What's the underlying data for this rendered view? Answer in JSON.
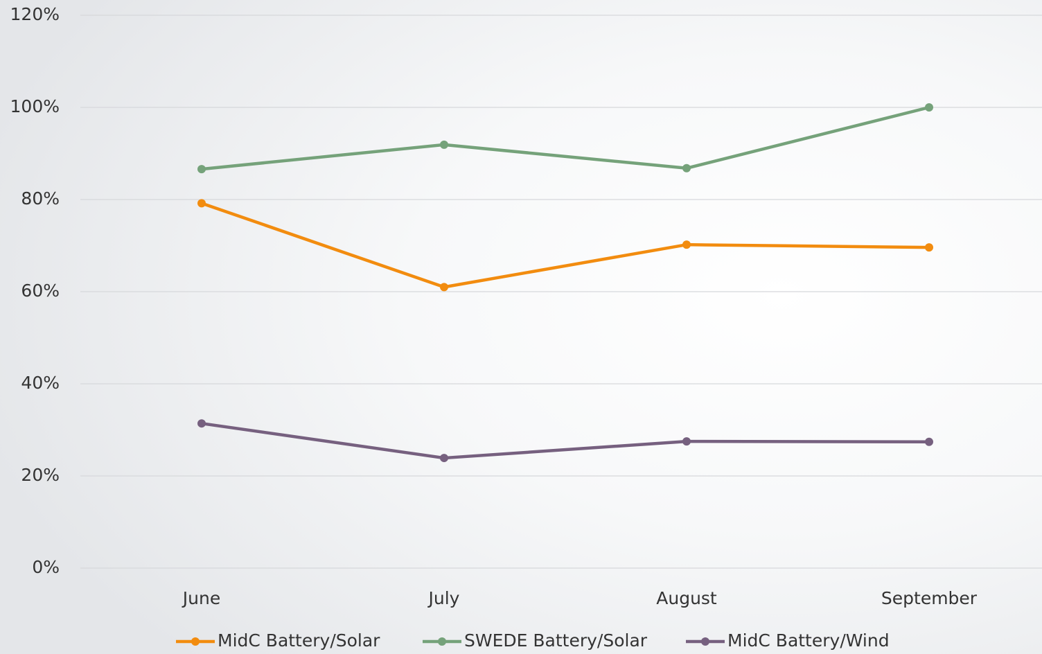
{
  "chart_data": {
    "type": "line",
    "categories": [
      "June",
      "July",
      "August",
      "September"
    ],
    "series": [
      {
        "name": "MidC Battery/Solar",
        "color": "#f28c0f",
        "values": [
          79.2,
          61.0,
          70.2,
          69.6
        ]
      },
      {
        "name": "SWEDE Battery/Solar",
        "color": "#75a27a",
        "values": [
          86.6,
          91.9,
          86.8,
          100
        ]
      },
      {
        "name": "MidC Battery/Wind",
        "color": "#76607f",
        "values": [
          31.4,
          23.9,
          27.5,
          27.4
        ]
      }
    ],
    "ylim": [
      0,
      120
    ],
    "yticks": [
      {
        "value": 0,
        "label": "0%"
      },
      {
        "value": 20,
        "label": "20%"
      },
      {
        "value": 40,
        "label": "40%"
      },
      {
        "value": 60,
        "label": "60%"
      },
      {
        "value": 80,
        "label": "80%"
      },
      {
        "value": 100,
        "label": "100%"
      },
      {
        "value": 120,
        "label": "120%"
      }
    ],
    "grid": true,
    "legend": "bottom"
  }
}
